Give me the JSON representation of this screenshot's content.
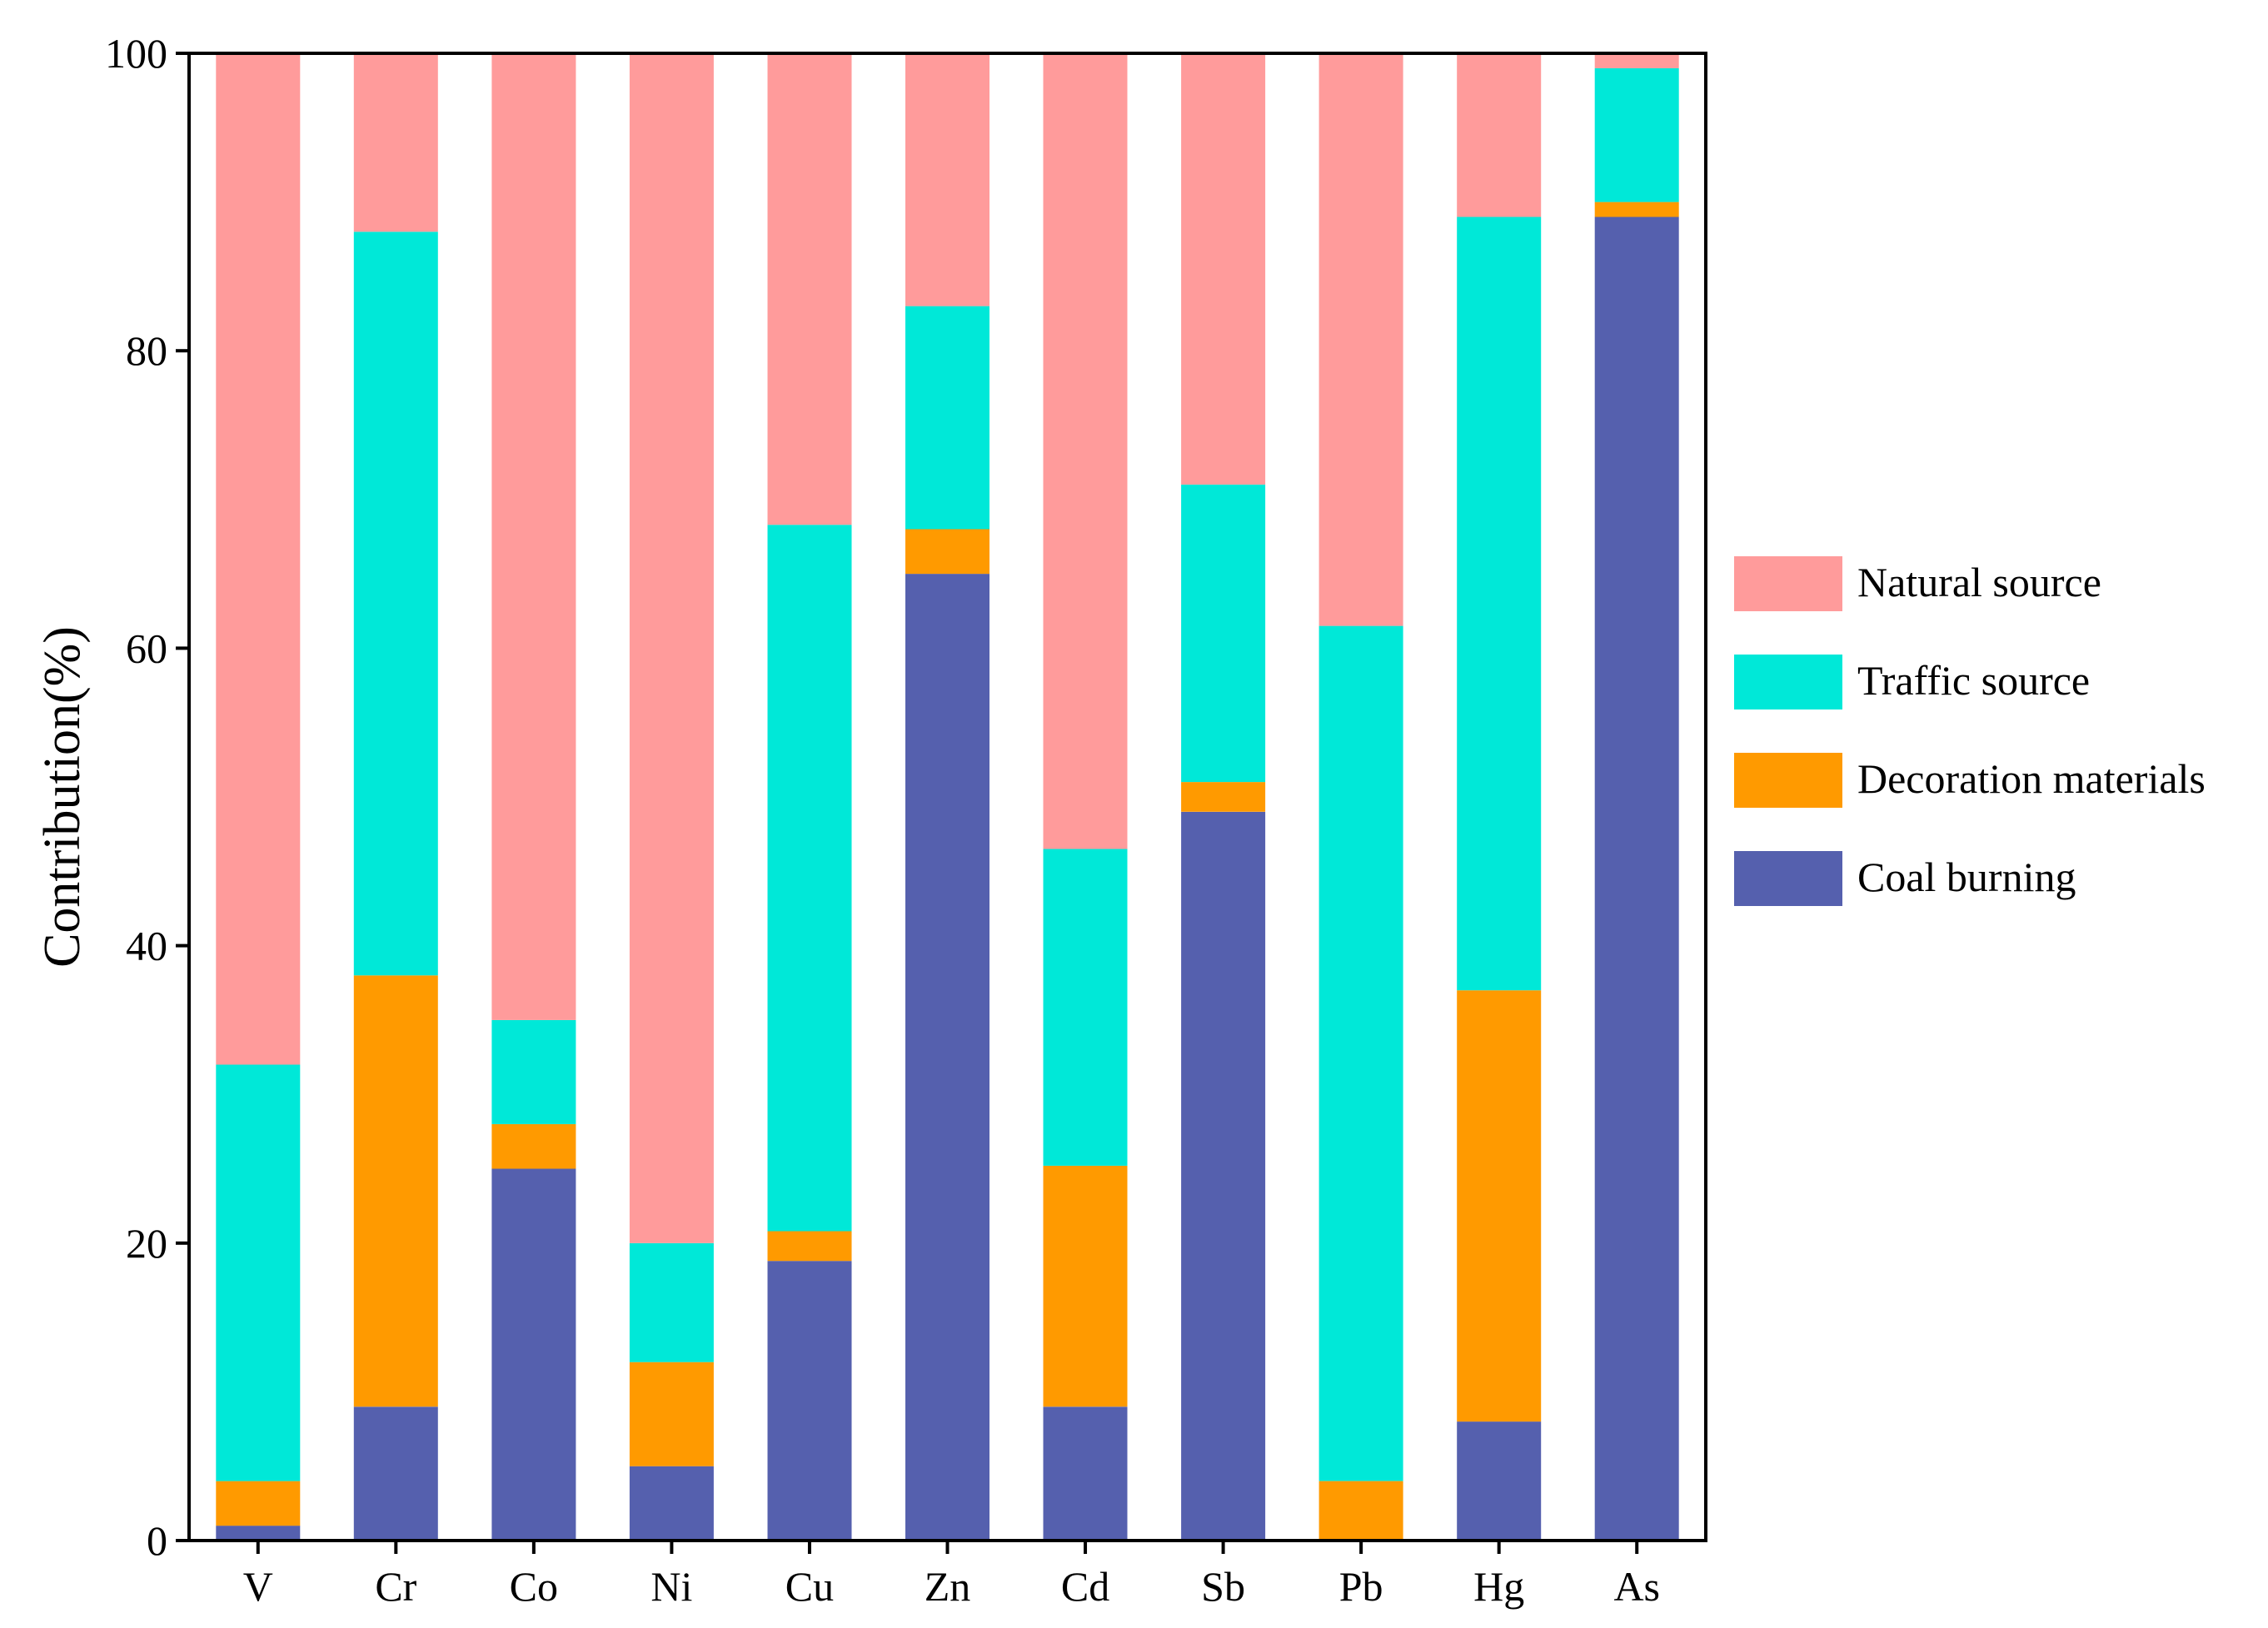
{
  "chart_data": {
    "type": "bar",
    "stacked": true,
    "categories": [
      "V",
      "Cr",
      "Co",
      "Ni",
      "Cu",
      "Zn",
      "Cd",
      "Sb",
      "Pb",
      "Hg",
      "As"
    ],
    "series": [
      {
        "name": "Coal burning",
        "color": "#5560AE",
        "values": [
          1,
          9,
          25,
          5,
          18.8,
          65,
          9,
          49,
          0,
          8,
          89
        ]
      },
      {
        "name": "Decoration materials",
        "color": "#FF9A00",
        "values": [
          3,
          29,
          3,
          7,
          2,
          3,
          16.2,
          2,
          4,
          29,
          1
        ]
      },
      {
        "name": "Traffic source",
        "color": "#00E8D8",
        "values": [
          28,
          50,
          7,
          8,
          47.5,
          15,
          21.3,
          20,
          57.5,
          52,
          9
        ]
      },
      {
        "name": "Natural source",
        "color": "#FF9B9B",
        "values": [
          68,
          12,
          65,
          80,
          31.7,
          17,
          53.5,
          29,
          38.5,
          11,
          1
        ]
      }
    ],
    "legend_order": [
      "Natural source",
      "Traffic source",
      "Decoration materials",
      "Coal burning"
    ],
    "xlabel": "",
    "ylabel": "Contribution(%)",
    "ylim": [
      0,
      100
    ],
    "yticks": [
      0,
      20,
      40,
      60,
      80,
      100
    ],
    "grid": false,
    "legend_position": "right"
  }
}
